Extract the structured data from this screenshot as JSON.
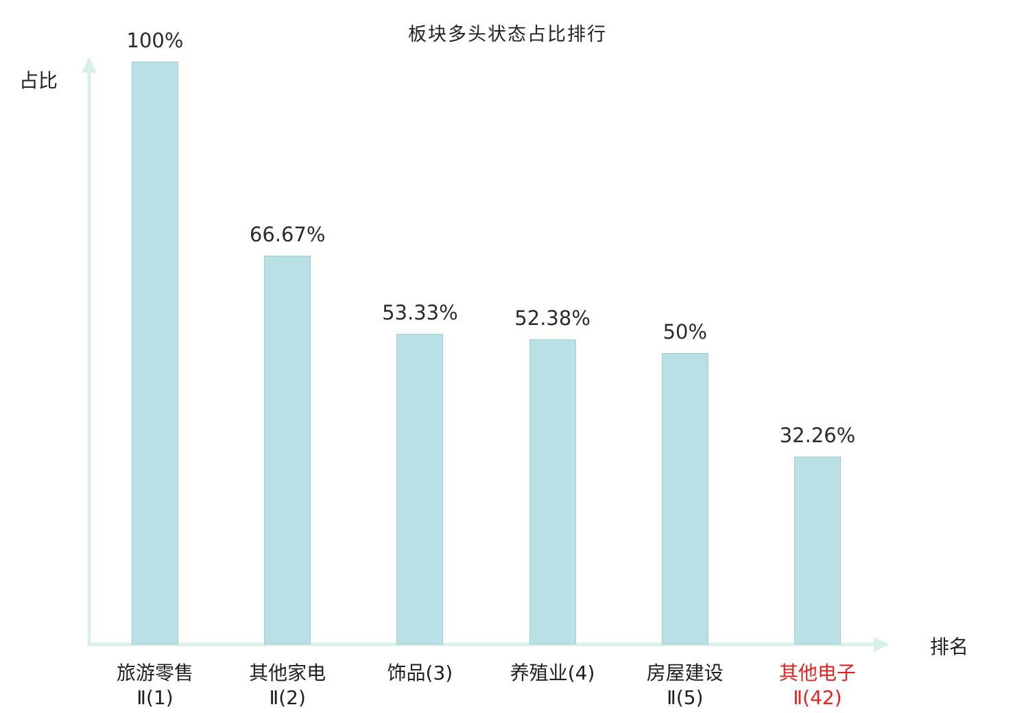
{
  "chart_data": {
    "type": "bar",
    "title": "板块多头状态占比排行",
    "xlabel": "排名",
    "ylabel": "占比",
    "ylim": [
      0,
      100
    ],
    "grid": false,
    "legend": "none",
    "bar_color": "#b9e0e5",
    "bar_border_color": "#9fced5",
    "axis_color": "#d9efe9",
    "highlight_color": "#e02424",
    "categories": [
      "旅游零售Ⅱ(1)",
      "其他家电Ⅱ(2)",
      "饰品(3)",
      "养殖业(4)",
      "房屋建设Ⅱ(5)",
      "其他电子Ⅱ(42)"
    ],
    "values": [
      100,
      66.67,
      53.33,
      52.38,
      50,
      32.26
    ],
    "bars": [
      {
        "label_line1": "旅游零售",
        "label_line2": "Ⅱ(1)",
        "value": 100,
        "value_label": "100%",
        "highlighted": false
      },
      {
        "label_line1": "其他家电",
        "label_line2": "Ⅱ(2)",
        "value": 66.67,
        "value_label": "66.67%",
        "highlighted": false
      },
      {
        "label_line1": "饰品(3)",
        "label_line2": "",
        "value": 53.33,
        "value_label": "53.33%",
        "highlighted": false
      },
      {
        "label_line1": "养殖业(4)",
        "label_line2": "",
        "value": 52.38,
        "value_label": "52.38%",
        "highlighted": false
      },
      {
        "label_line1": "房屋建设",
        "label_line2": "Ⅱ(5)",
        "value": 50,
        "value_label": "50%",
        "highlighted": false
      },
      {
        "label_line1": "其他电子",
        "label_line2": "Ⅱ(42)",
        "value": 32.26,
        "value_label": "32.26%",
        "highlighted": true
      }
    ]
  }
}
